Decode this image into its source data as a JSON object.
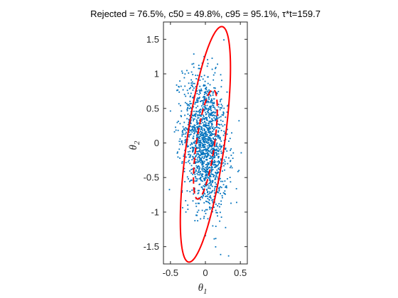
{
  "chart_data": {
    "type": "scatter",
    "title": "Rejected = 76.5%, c50 = 49.8%, c95 = 95.1%, τ*t=159.7",
    "xlabel": {
      "base": "θ",
      "sub": "1"
    },
    "ylabel": {
      "base": "θ",
      "sub": "2"
    },
    "xlim": [
      -0.6,
      0.6
    ],
    "ylim": [
      -1.75,
      1.75
    ],
    "xticks": [
      -0.5,
      0,
      0.5
    ],
    "xtick_labels": [
      "-0.5",
      "0",
      "0.5"
    ],
    "yticks": [
      -1.5,
      -1,
      -0.5,
      0,
      0.5,
      1,
      1.5
    ],
    "ytick_labels": [
      "-1.5",
      "-1",
      "-0.5",
      "0",
      "0.5",
      "1",
      "1.5"
    ],
    "grid": false,
    "box": true,
    "colors": {
      "points": "#0072BD",
      "ellipse": "#FF0000",
      "axes": "#262626"
    },
    "scatter": {
      "n_points": 1500,
      "center": [
        0.0,
        0.0
      ],
      "sd": [
        0.16,
        0.5
      ],
      "correlation": -0.22,
      "x_range_observed": [
        -0.58,
        0.6
      ],
      "y_range_observed": [
        -1.65,
        1.6
      ]
    },
    "ellipses": [
      {
        "name": "c95",
        "style": "solid",
        "center": [
          0.0,
          -0.02
        ],
        "semi_axes": [
          0.27,
          1.72
        ],
        "tilt_deg": 8
      },
      {
        "name": "c50",
        "style": "dashed",
        "center": [
          0.0,
          -0.02
        ],
        "semi_axes": [
          0.13,
          0.8
        ],
        "tilt_deg": 8
      }
    ]
  }
}
